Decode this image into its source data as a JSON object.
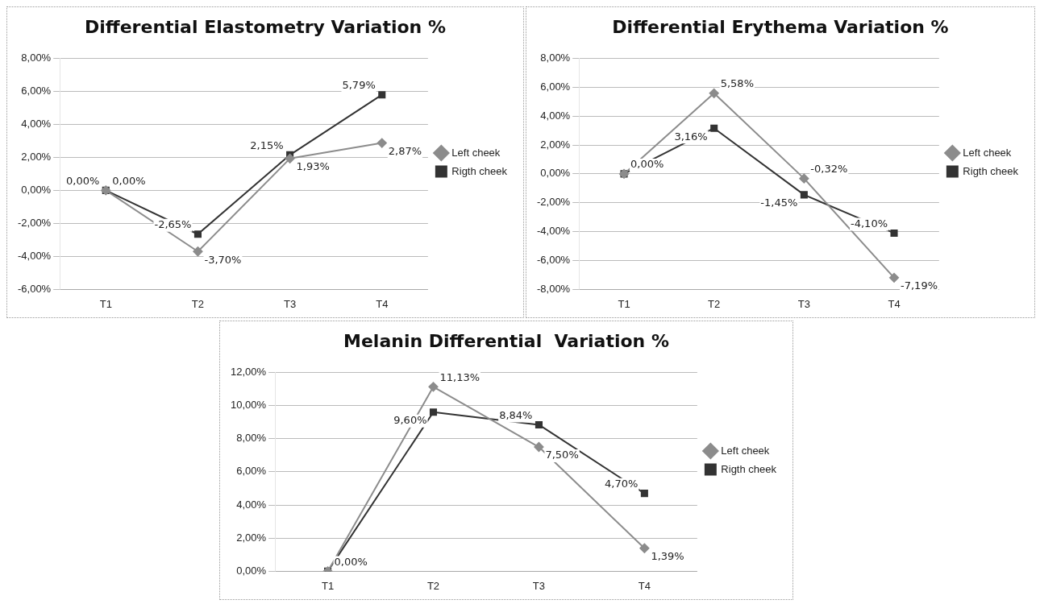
{
  "chart_data": [
    {
      "type": "line",
      "title": "Differential Elastometry Variation %",
      "categories": [
        "T1",
        "T2",
        "T3",
        "T4"
      ],
      "series": [
        {
          "name": "Left cheek",
          "color": "#8c8c8c",
          "marker": "diamond",
          "values": [
            0,
            -3.7,
            1.93,
            2.87
          ],
          "value_labels": [
            "0,00%",
            "-3,70%",
            "1,93%",
            "2,87%"
          ]
        },
        {
          "name": "Rigth cheek",
          "color": "#333333",
          "marker": "square",
          "values": [
            0,
            -2.65,
            2.15,
            5.79
          ],
          "value_labels": [
            "0,00%",
            "-2,65%",
            "2,15%",
            "5,79%"
          ]
        }
      ],
      "ylim": [
        -6,
        8
      ],
      "yticks": [
        {
          "value": -6,
          "label": "-6,00%"
        },
        {
          "value": -4,
          "label": "-4,00%"
        },
        {
          "value": -2,
          "label": "-2,00%"
        },
        {
          "value": 0,
          "label": "0,00%"
        },
        {
          "value": 2,
          "label": "2,00%"
        },
        {
          "value": 4,
          "label": "4,00%"
        },
        {
          "value": 6,
          "label": "6,00%"
        },
        {
          "value": 8,
          "label": "8,00%"
        }
      ],
      "grid": "y",
      "legend": "right"
    },
    {
      "type": "line",
      "title": "Differential Erythema Variation %",
      "categories": [
        "T1",
        "T2",
        "T3",
        "T4"
      ],
      "series": [
        {
          "name": "Left cheek",
          "color": "#8c8c8c",
          "marker": "diamond",
          "values": [
            0,
            5.58,
            -0.32,
            -7.19
          ],
          "value_labels": [
            "0,00%",
            "5,58%",
            "-0,32%",
            "-7,19%"
          ]
        },
        {
          "name": "Rigth cheek",
          "color": "#333333",
          "marker": "square",
          "values": [
            0,
            3.16,
            -1.45,
            -4.1
          ],
          "value_labels": [
            null,
            "3,16%",
            "-1,45%",
            "-4,10%"
          ]
        }
      ],
      "ylim": [
        -8,
        8
      ],
      "yticks": [
        {
          "value": -8,
          "label": "-8,00%"
        },
        {
          "value": -6,
          "label": "-6,00%"
        },
        {
          "value": -4,
          "label": "-4,00%"
        },
        {
          "value": -2,
          "label": "-2,00%"
        },
        {
          "value": 0,
          "label": "0,00%"
        },
        {
          "value": 2,
          "label": "2,00%"
        },
        {
          "value": 4,
          "label": "4,00%"
        },
        {
          "value": 6,
          "label": "6,00%"
        },
        {
          "value": 8,
          "label": "8,00%"
        }
      ],
      "grid": "y",
      "legend": "right"
    },
    {
      "type": "line",
      "title": "Melanin Differential  Variation %",
      "categories": [
        "T1",
        "T2",
        "T3",
        "T4"
      ],
      "series": [
        {
          "name": "Left cheek",
          "color": "#8c8c8c",
          "marker": "diamond",
          "values": [
            0,
            11.13,
            7.5,
            1.39
          ],
          "value_labels": [
            "0,00%",
            "11,13%",
            "7,50%",
            "1,39%"
          ]
        },
        {
          "name": "Rigth cheek",
          "color": "#333333",
          "marker": "square",
          "values": [
            0,
            9.6,
            8.84,
            4.7
          ],
          "value_labels": [
            null,
            "9,60%",
            "8,84%",
            "4,70%"
          ]
        }
      ],
      "ylim": [
        0,
        12
      ],
      "yticks": [
        {
          "value": 0,
          "label": "0,00%"
        },
        {
          "value": 2,
          "label": "2,00%"
        },
        {
          "value": 4,
          "label": "4,00%"
        },
        {
          "value": 6,
          "label": "6,00%"
        },
        {
          "value": 8,
          "label": "8,00%"
        },
        {
          "value": 10,
          "label": "10,00%"
        },
        {
          "value": 12,
          "label": "12,00%"
        }
      ],
      "grid": "y",
      "legend": "right"
    }
  ]
}
